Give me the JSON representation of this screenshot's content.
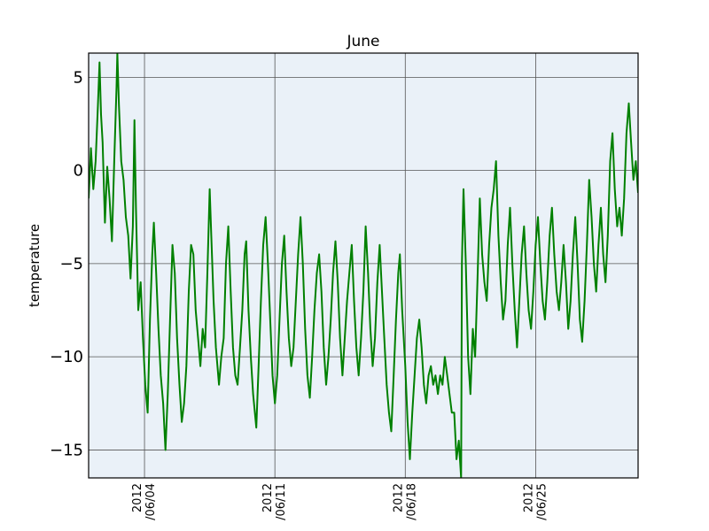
{
  "chart_data": {
    "type": "line",
    "title": "June",
    "xlabel": "",
    "ylabel": "temperature",
    "x_range": [
      "2012-06-01",
      "2012-06-30T12:00"
    ],
    "ylim": [
      -16.5,
      6.3
    ],
    "grid": true,
    "background_color": "#eaf1f8",
    "line_color": "#008000",
    "y_ticks": [
      {
        "value": 5,
        "label": "5"
      },
      {
        "value": 0,
        "label": "0"
      },
      {
        "value": -5,
        "label": "−5"
      },
      {
        "value": -10,
        "label": "−10"
      },
      {
        "value": -15,
        "label": "−15"
      }
    ],
    "x_ticks": [
      {
        "date": "2012-06-04",
        "label_line1": "2012",
        "label_line2": "/06/04"
      },
      {
        "date": "2012-06-11",
        "label_line1": "2012",
        "label_line2": "/06/11"
      },
      {
        "date": "2012-06-18",
        "label_line1": "2012",
        "label_line2": "/06/18"
      },
      {
        "date": "2012-06-25",
        "label_line1": "2012",
        "label_line2": "/06/25"
      }
    ],
    "series": [
      {
        "points": [
          [
            "2012-06-01T00:00",
            -1.5
          ],
          [
            "2012-06-01T03:00",
            1.2
          ],
          [
            "2012-06-01T06:00",
            -1.0
          ],
          [
            "2012-06-01T09:00",
            0.5
          ],
          [
            "2012-06-01T12:00",
            3.5
          ],
          [
            "2012-06-01T14:00",
            5.8
          ],
          [
            "2012-06-01T16:00",
            3.0
          ],
          [
            "2012-06-01T18:00",
            1.5
          ],
          [
            "2012-06-01T21:00",
            -2.8
          ],
          [
            "2012-06-02T00:00",
            0.2
          ],
          [
            "2012-06-02T03:00",
            -1.5
          ],
          [
            "2012-06-02T06:00",
            -3.8
          ],
          [
            "2012-06-02T09:00",
            0.5
          ],
          [
            "2012-06-02T12:00",
            4.5
          ],
          [
            "2012-06-02T13:00",
            6.3
          ],
          [
            "2012-06-02T15:00",
            3.5
          ],
          [
            "2012-06-02T18:00",
            0.5
          ],
          [
            "2012-06-02T21:00",
            -0.5
          ],
          [
            "2012-06-03T00:00",
            -2.5
          ],
          [
            "2012-06-03T03:00",
            -3.5
          ],
          [
            "2012-06-03T06:00",
            -5.8
          ],
          [
            "2012-06-03T09:00",
            -3.0
          ],
          [
            "2012-06-03T11:00",
            2.7
          ],
          [
            "2012-06-03T13:00",
            -2.0
          ],
          [
            "2012-06-03T16:00",
            -7.5
          ],
          [
            "2012-06-03T19:00",
            -6.0
          ],
          [
            "2012-06-03T22:00",
            -9.0
          ],
          [
            "2012-06-04T01:00",
            -11.5
          ],
          [
            "2012-06-04T04:00",
            -13.0
          ],
          [
            "2012-06-04T07:00",
            -8.0
          ],
          [
            "2012-06-04T10:00",
            -4.5
          ],
          [
            "2012-06-04T12:00",
            -2.8
          ],
          [
            "2012-06-04T15:00",
            -5.5
          ],
          [
            "2012-06-04T18:00",
            -8.5
          ],
          [
            "2012-06-04T21:00",
            -11.0
          ],
          [
            "2012-06-05T00:00",
            -12.5
          ],
          [
            "2012-06-05T03:00",
            -15.0
          ],
          [
            "2012-06-05T06:00",
            -12.0
          ],
          [
            "2012-06-05T09:00",
            -8.0
          ],
          [
            "2012-06-05T12:00",
            -4.0
          ],
          [
            "2012-06-05T15:00",
            -5.5
          ],
          [
            "2012-06-05T18:00",
            -9.0
          ],
          [
            "2012-06-05T21:00",
            -11.5
          ],
          [
            "2012-06-06T00:00",
            -13.5
          ],
          [
            "2012-06-06T03:00",
            -12.5
          ],
          [
            "2012-06-06T06:00",
            -10.5
          ],
          [
            "2012-06-06T09:00",
            -6.5
          ],
          [
            "2012-06-06T12:00",
            -4.0
          ],
          [
            "2012-06-06T15:00",
            -4.5
          ],
          [
            "2012-06-06T18:00",
            -7.5
          ],
          [
            "2012-06-06T21:00",
            -9.0
          ],
          [
            "2012-06-07T00:00",
            -10.5
          ],
          [
            "2012-06-07T03:00",
            -8.5
          ],
          [
            "2012-06-07T06:00",
            -9.5
          ],
          [
            "2012-06-07T09:00",
            -5.5
          ],
          [
            "2012-06-07T12:00",
            -1.0
          ],
          [
            "2012-06-07T14:00",
            -3.5
          ],
          [
            "2012-06-07T17:00",
            -7.0
          ],
          [
            "2012-06-07T20:00",
            -9.5
          ],
          [
            "2012-06-08T00:00",
            -11.5
          ],
          [
            "2012-06-08T03:00",
            -10.0
          ],
          [
            "2012-06-08T06:00",
            -9.0
          ],
          [
            "2012-06-08T09:00",
            -5.0
          ],
          [
            "2012-06-08T12:00",
            -3.0
          ],
          [
            "2012-06-08T15:00",
            -6.5
          ],
          [
            "2012-06-08T18:00",
            -9.5
          ],
          [
            "2012-06-08T21:00",
            -11.0
          ],
          [
            "2012-06-09T00:00",
            -11.5
          ],
          [
            "2012-06-09T03:00",
            -9.5
          ],
          [
            "2012-06-09T06:00",
            -7.5
          ],
          [
            "2012-06-09T09:00",
            -4.5
          ],
          [
            "2012-06-09T11:00",
            -3.8
          ],
          [
            "2012-06-09T14:00",
            -7.5
          ],
          [
            "2012-06-09T17:00",
            -10.0
          ],
          [
            "2012-06-09T20:00",
            -12.0
          ],
          [
            "2012-06-10T00:00",
            -13.8
          ],
          [
            "2012-06-10T03:00",
            -10.5
          ],
          [
            "2012-06-10T06:00",
            -7.0
          ],
          [
            "2012-06-10T09:00",
            -4.0
          ],
          [
            "2012-06-10T12:00",
            -2.5
          ],
          [
            "2012-06-10T15:00",
            -5.0
          ],
          [
            "2012-06-10T18:00",
            -8.0
          ],
          [
            "2012-06-10T21:00",
            -11.0
          ],
          [
            "2012-06-11T00:00",
            -12.5
          ],
          [
            "2012-06-11T03:00",
            -11.0
          ],
          [
            "2012-06-11T06:00",
            -8.0
          ],
          [
            "2012-06-11T09:00",
            -5.0
          ],
          [
            "2012-06-11T12:00",
            -3.5
          ],
          [
            "2012-06-11T15:00",
            -6.5
          ],
          [
            "2012-06-11T18:00",
            -9.0
          ],
          [
            "2012-06-11T21:00",
            -10.5
          ],
          [
            "2012-06-12T00:00",
            -9.5
          ],
          [
            "2012-06-12T03:00",
            -7.0
          ],
          [
            "2012-06-12T06:00",
            -4.5
          ],
          [
            "2012-06-12T09:00",
            -2.5
          ],
          [
            "2012-06-12T12:00",
            -5.0
          ],
          [
            "2012-06-12T15:00",
            -8.5
          ],
          [
            "2012-06-12T18:00",
            -11.0
          ],
          [
            "2012-06-12T21:00",
            -12.2
          ],
          [
            "2012-06-13T00:00",
            -10.0
          ],
          [
            "2012-06-13T03:00",
            -7.5
          ],
          [
            "2012-06-13T06:00",
            -5.5
          ],
          [
            "2012-06-13T09:00",
            -4.5
          ],
          [
            "2012-06-13T12:00",
            -6.5
          ],
          [
            "2012-06-13T15:00",
            -9.5
          ],
          [
            "2012-06-13T18:00",
            -11.5
          ],
          [
            "2012-06-13T21:00",
            -10.0
          ],
          [
            "2012-06-14T00:00",
            -8.0
          ],
          [
            "2012-06-14T03:00",
            -5.5
          ],
          [
            "2012-06-14T06:00",
            -3.8
          ],
          [
            "2012-06-14T09:00",
            -6.0
          ],
          [
            "2012-06-14T12:00",
            -9.0
          ],
          [
            "2012-06-14T15:00",
            -11.0
          ],
          [
            "2012-06-14T18:00",
            -9.0
          ],
          [
            "2012-06-14T21:00",
            -7.0
          ],
          [
            "2012-06-15T00:00",
            -5.5
          ],
          [
            "2012-06-15T03:00",
            -4.0
          ],
          [
            "2012-06-15T06:00",
            -7.0
          ],
          [
            "2012-06-15T09:00",
            -9.5
          ],
          [
            "2012-06-15T12:00",
            -11.0
          ],
          [
            "2012-06-15T15:00",
            -9.0
          ],
          [
            "2012-06-15T18:00",
            -6.5
          ],
          [
            "2012-06-15T21:00",
            -3.0
          ],
          [
            "2012-06-16T00:00",
            -5.5
          ],
          [
            "2012-06-16T03:00",
            -8.5
          ],
          [
            "2012-06-16T06:00",
            -10.5
          ],
          [
            "2012-06-16T09:00",
            -9.0
          ],
          [
            "2012-06-16T12:00",
            -6.0
          ],
          [
            "2012-06-16T15:00",
            -4.0
          ],
          [
            "2012-06-16T18:00",
            -6.5
          ],
          [
            "2012-06-16T21:00",
            -9.0
          ],
          [
            "2012-06-17T00:00",
            -11.5
          ],
          [
            "2012-06-17T03:00",
            -13.0
          ],
          [
            "2012-06-17T06:00",
            -14.0
          ],
          [
            "2012-06-17T09:00",
            -11.0
          ],
          [
            "2012-06-17T12:00",
            -8.0
          ],
          [
            "2012-06-17T15:00",
            -5.5
          ],
          [
            "2012-06-17T17:00",
            -4.5
          ],
          [
            "2012-06-17T20:00",
            -7.5
          ],
          [
            "2012-06-18T00:00",
            -10.5
          ],
          [
            "2012-06-18T03:00",
            -13.5
          ],
          [
            "2012-06-18T06:00",
            -15.5
          ],
          [
            "2012-06-18T09:00",
            -13.0
          ],
          [
            "2012-06-18T12:00",
            -11.0
          ],
          [
            "2012-06-18T15:00",
            -9.0
          ],
          [
            "2012-06-18T18:00",
            -8.0
          ],
          [
            "2012-06-18T21:00",
            -9.5
          ],
          [
            "2012-06-19T00:00",
            -11.5
          ],
          [
            "2012-06-19T03:00",
            -12.5
          ],
          [
            "2012-06-19T06:00",
            -11.0
          ],
          [
            "2012-06-19T09:00",
            -10.5
          ],
          [
            "2012-06-19T12:00",
            -11.5
          ],
          [
            "2012-06-19T15:00",
            -11.0
          ],
          [
            "2012-06-19T18:00",
            -12.0
          ],
          [
            "2012-06-19T21:00",
            -11.0
          ],
          [
            "2012-06-20T00:00",
            -11.5
          ],
          [
            "2012-06-20T03:00",
            -10.0
          ],
          [
            "2012-06-20T06:00",
            -11.0
          ],
          [
            "2012-06-20T09:00",
            -12.0
          ],
          [
            "2012-06-20T12:00",
            -13.0
          ],
          [
            "2012-06-20T15:00",
            -13.0
          ],
          [
            "2012-06-20T18:00",
            -15.5
          ],
          [
            "2012-06-20T21:00",
            -14.5
          ],
          [
            "2012-06-21T00:00",
            -16.5
          ],
          [
            "2012-06-21T01:00",
            -5.0
          ],
          [
            "2012-06-21T03:00",
            -1.0
          ],
          [
            "2012-06-21T06:00",
            -5.0
          ],
          [
            "2012-06-21T09:00",
            -10.0
          ],
          [
            "2012-06-21T12:00",
            -12.0
          ],
          [
            "2012-06-21T15:00",
            -8.5
          ],
          [
            "2012-06-21T18:00",
            -10.0
          ],
          [
            "2012-06-21T21:00",
            -6.0
          ],
          [
            "2012-06-22T00:00",
            -1.5
          ],
          [
            "2012-06-22T03:00",
            -4.5
          ],
          [
            "2012-06-22T06:00",
            -6.0
          ],
          [
            "2012-06-22T09:00",
            -7.0
          ],
          [
            "2012-06-22T12:00",
            -4.0
          ],
          [
            "2012-06-22T15:00",
            -2.0
          ],
          [
            "2012-06-22T18:00",
            -1.0
          ],
          [
            "2012-06-22T21:00",
            0.5
          ],
          [
            "2012-06-23T00:00",
            -3.5
          ],
          [
            "2012-06-23T03:00",
            -6.0
          ],
          [
            "2012-06-23T06:00",
            -8.0
          ],
          [
            "2012-06-23T09:00",
            -7.0
          ],
          [
            "2012-06-23T12:00",
            -4.0
          ],
          [
            "2012-06-23T15:00",
            -2.0
          ],
          [
            "2012-06-23T18:00",
            -5.0
          ],
          [
            "2012-06-23T21:00",
            -7.5
          ],
          [
            "2012-06-24T00:00",
            -9.5
          ],
          [
            "2012-06-24T03:00",
            -7.0
          ],
          [
            "2012-06-24T06:00",
            -4.5
          ],
          [
            "2012-06-24T09:00",
            -3.0
          ],
          [
            "2012-06-24T12:00",
            -5.5
          ],
          [
            "2012-06-24T15:00",
            -7.5
          ],
          [
            "2012-06-24T18:00",
            -8.5
          ],
          [
            "2012-06-24T21:00",
            -6.5
          ],
          [
            "2012-06-25T00:00",
            -4.0
          ],
          [
            "2012-06-25T03:00",
            -2.5
          ],
          [
            "2012-06-25T06:00",
            -5.0
          ],
          [
            "2012-06-25T09:00",
            -7.0
          ],
          [
            "2012-06-25T12:00",
            -8.0
          ],
          [
            "2012-06-25T15:00",
            -6.0
          ],
          [
            "2012-06-25T18:00",
            -3.5
          ],
          [
            "2012-06-25T21:00",
            -2.0
          ],
          [
            "2012-06-26T00:00",
            -4.5
          ],
          [
            "2012-06-26T03:00",
            -6.5
          ],
          [
            "2012-06-26T06:00",
            -7.5
          ],
          [
            "2012-06-26T09:00",
            -6.0
          ],
          [
            "2012-06-26T12:00",
            -4.0
          ],
          [
            "2012-06-26T15:00",
            -6.0
          ],
          [
            "2012-06-26T18:00",
            -8.5
          ],
          [
            "2012-06-26T21:00",
            -7.0
          ],
          [
            "2012-06-27T00:00",
            -4.5
          ],
          [
            "2012-06-27T03:00",
            -2.5
          ],
          [
            "2012-06-27T06:00",
            -5.0
          ],
          [
            "2012-06-27T09:00",
            -8.0
          ],
          [
            "2012-06-27T12:00",
            -9.2
          ],
          [
            "2012-06-27T15:00",
            -7.0
          ],
          [
            "2012-06-27T18:00",
            -4.0
          ],
          [
            "2012-06-27T21:00",
            -0.5
          ],
          [
            "2012-06-28T00:00",
            -2.5
          ],
          [
            "2012-06-28T03:00",
            -5.0
          ],
          [
            "2012-06-28T06:00",
            -6.5
          ],
          [
            "2012-06-28T09:00",
            -4.0
          ],
          [
            "2012-06-28T12:00",
            -2.0
          ],
          [
            "2012-06-28T15:00",
            -4.5
          ],
          [
            "2012-06-28T18:00",
            -6.0
          ],
          [
            "2012-06-28T21:00",
            -3.5
          ],
          [
            "2012-06-29T00:00",
            0.5
          ],
          [
            "2012-06-29T03:00",
            2.0
          ],
          [
            "2012-06-29T06:00",
            -1.0
          ],
          [
            "2012-06-29T09:00",
            -3.0
          ],
          [
            "2012-06-29T12:00",
            -2.0
          ],
          [
            "2012-06-29T15:00",
            -3.5
          ],
          [
            "2012-06-29T18:00",
            -1.5
          ],
          [
            "2012-06-29T21:00",
            2.0
          ],
          [
            "2012-06-30T00:00",
            3.6
          ],
          [
            "2012-06-30T03:00",
            1.5
          ],
          [
            "2012-06-30T06:00",
            -0.5
          ],
          [
            "2012-06-30T09:00",
            0.5
          ],
          [
            "2012-06-30T12:00",
            -1.2
          ]
        ]
      }
    ]
  }
}
